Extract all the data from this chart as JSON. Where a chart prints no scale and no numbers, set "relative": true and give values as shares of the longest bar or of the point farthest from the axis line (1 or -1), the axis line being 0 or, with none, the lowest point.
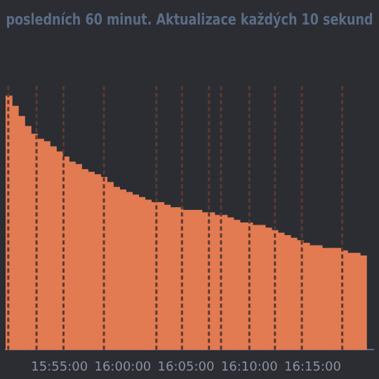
{
  "chart_data": {
    "type": "bar",
    "title": "posledních 60 minut. Aktualizace každých 10 sekund",
    "relative": true,
    "color": "#e27a52",
    "legend": false,
    "grid": false,
    "x": [
      15.85,
      15.8583,
      15.8667,
      15.875,
      15.8833,
      15.8917,
      15.9,
      15.9083,
      15.9167,
      15.925,
      15.9333,
      15.9417,
      15.95,
      15.9583,
      15.9667,
      15.975,
      15.9833,
      15.9917,
      16.0,
      16.0083,
      16.0167,
      16.025,
      16.0333,
      16.0417,
      16.05,
      16.0583,
      16.0667,
      16.075,
      16.0833,
      16.0917,
      16.1,
      16.1083,
      16.1167,
      16.125,
      16.1333,
      16.1417,
      16.15,
      16.1583,
      16.1667,
      16.175,
      16.1833,
      16.1917,
      16.2,
      16.2083,
      16.2167,
      16.225,
      16.2333,
      16.2417,
      16.25,
      16.2583,
      16.2667,
      16.275,
      16.2833,
      16.2917,
      16.3,
      16.3083,
      16.3167
    ],
    "values": [
      1,
      0.96,
      0.92,
      0.88,
      0.85,
      0.83,
      0.82,
      0.8,
      0.78,
      0.76,
      0.74,
      0.73,
      0.71,
      0.7,
      0.69,
      0.68,
      0.66,
      0.64,
      0.63,
      0.62,
      0.61,
      0.6,
      0.59,
      0.58,
      0.58,
      0.57,
      0.56,
      0.56,
      0.55,
      0.55,
      0.55,
      0.54,
      0.54,
      0.53,
      0.53,
      0.52,
      0.51,
      0.5,
      0.5,
      0.49,
      0.49,
      0.48,
      0.47,
      0.46,
      0.45,
      0.44,
      0.43,
      0.42,
      0.41,
      0.41,
      0.4,
      0.4,
      0.4,
      0.39,
      0.38,
      0.38,
      0.37
    ],
    "xlim": [
      15.8458,
      16.33
    ],
    "xticks": [
      {
        "value": 15.9167,
        "label": "15:55:00"
      },
      {
        "value": 16.0,
        "label": "16:00:00"
      },
      {
        "value": 16.0833,
        "label": "16:05:00"
      },
      {
        "value": 16.1667,
        "label": "16:10:00"
      },
      {
        "value": 16.25,
        "label": "16:15:00"
      }
    ],
    "ref_lines": [
      {
        "axis": "x",
        "value": 15.8493,
        "color": "#5a3a30",
        "line_style": "dashed"
      },
      {
        "axis": "x",
        "value": 15.8865,
        "color": "#5a3a30",
        "line_style": "dashed"
      },
      {
        "axis": "x",
        "value": 15.922,
        "color": "#5a3a30",
        "line_style": "dashed"
      },
      {
        "axis": "x",
        "value": 15.9752,
        "color": "#5a3a30",
        "line_style": "dashed"
      },
      {
        "axis": "x",
        "value": 16.0443,
        "color": "#5a3a30",
        "line_style": "dashed"
      },
      {
        "axis": "x",
        "value": 16.078,
        "color": "#5a3a30",
        "line_style": "dashed"
      },
      {
        "axis": "x",
        "value": 16.1135,
        "color": "#5a3a30",
        "line_style": "dashed"
      },
      {
        "axis": "x",
        "value": 16.1294,
        "color": "#5a3a30",
        "line_style": "dashed"
      },
      {
        "axis": "x",
        "value": 16.1667,
        "color": "#5a3a30",
        "line_style": "dashed"
      },
      {
        "axis": "x",
        "value": 16.2004,
        "color": "#5a3a30",
        "line_style": "dashed"
      },
      {
        "axis": "x",
        "value": 16.2358,
        "color": "#5a3a30",
        "line_style": "dashed"
      },
      {
        "axis": "x",
        "value": 16.289,
        "color": "#5a3a30",
        "line_style": "dashed"
      }
    ]
  }
}
